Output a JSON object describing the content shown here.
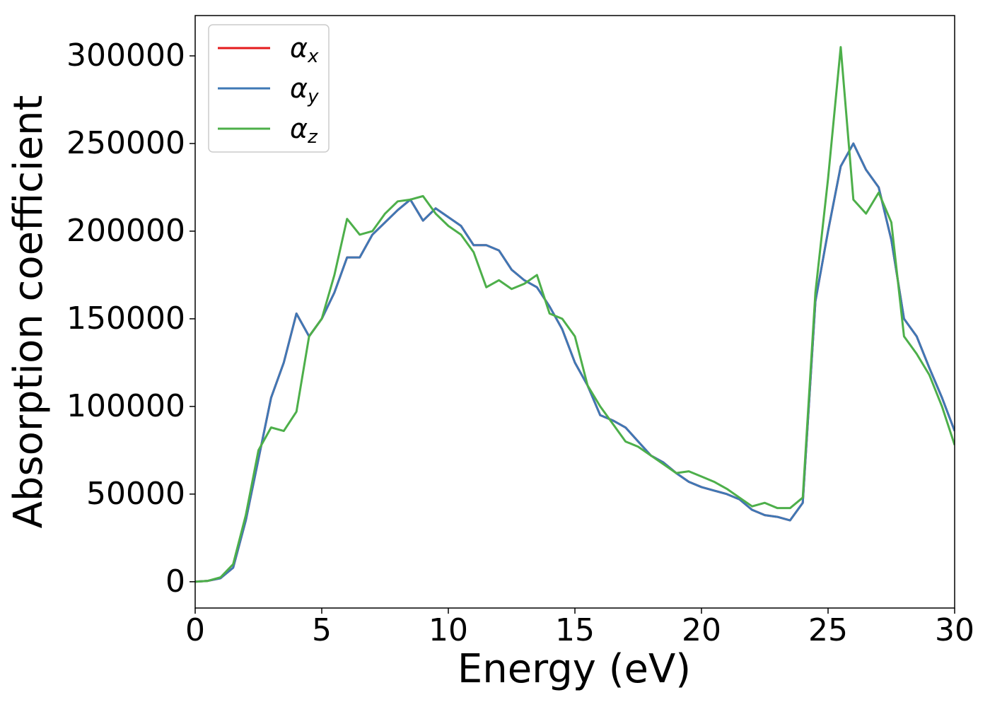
{
  "chart_data": {
    "type": "line",
    "xlabel": "Energy (eV)",
    "ylabel": "Absorption coefficient",
    "x": [
      0,
      0.5,
      1,
      1.5,
      2,
      2.5,
      3,
      3.5,
      4,
      4.5,
      5,
      5.5,
      6,
      6.5,
      7,
      7.5,
      8,
      8.5,
      9,
      9.5,
      10,
      10.5,
      11,
      11.5,
      12,
      12.5,
      13,
      13.5,
      14,
      14.5,
      15,
      15.5,
      16,
      16.5,
      17,
      17.5,
      18,
      18.5,
      19,
      19.5,
      20,
      20.5,
      21,
      21.5,
      22,
      22.5,
      23,
      23.5,
      24,
      24.5,
      25,
      25.5,
      26,
      26.5,
      27,
      27.5,
      28,
      28.5,
      29,
      29.5,
      30
    ],
    "series": [
      {
        "name": "αx",
        "color": "#e41a1c",
        "values": [
          0,
          500,
          2000,
          8000,
          35000,
          70000,
          105000,
          125000,
          153000,
          140000,
          150000,
          165000,
          185000,
          185000,
          198000,
          205000,
          212000,
          218000,
          206000,
          213000,
          208000,
          203000,
          192000,
          192000,
          189000,
          178000,
          172000,
          168000,
          157000,
          144000,
          125000,
          112000,
          95000,
          92000,
          88000,
          80000,
          72000,
          68000,
          62000,
          57000,
          54000,
          52000,
          50000,
          47000,
          41000,
          38000,
          37000,
          35000,
          45000,
          160000,
          200000,
          237000,
          250000,
          235000,
          225000,
          195000,
          150000,
          140000,
          122000,
          105000,
          86000
        ]
      },
      {
        "name": "αy",
        "color": "#3f78b5",
        "values": [
          0,
          500,
          2000,
          8000,
          35000,
          70000,
          105000,
          125000,
          153000,
          140000,
          150000,
          165000,
          185000,
          185000,
          198000,
          205000,
          212000,
          218000,
          206000,
          213000,
          208000,
          203000,
          192000,
          192000,
          189000,
          178000,
          172000,
          168000,
          157000,
          144000,
          125000,
          112000,
          95000,
          92000,
          88000,
          80000,
          72000,
          68000,
          62000,
          57000,
          54000,
          52000,
          50000,
          47000,
          41000,
          38000,
          37000,
          35000,
          45000,
          160000,
          200000,
          237000,
          250000,
          235000,
          225000,
          195000,
          150000,
          140000,
          122000,
          105000,
          86000
        ]
      },
      {
        "name": "αz",
        "color": "#4daf4a",
        "values": [
          0,
          500,
          2500,
          10000,
          38000,
          75000,
          88000,
          86000,
          97000,
          140000,
          150000,
          175000,
          207000,
          198000,
          200000,
          210000,
          217000,
          218000,
          220000,
          210000,
          203000,
          198000,
          188000,
          168000,
          172000,
          167000,
          170000,
          175000,
          153000,
          150000,
          140000,
          112000,
          100000,
          90000,
          80000,
          77000,
          72000,
          67000,
          62000,
          63000,
          60000,
          57000,
          53000,
          48000,
          43000,
          45000,
          42000,
          42000,
          48000,
          165000,
          230000,
          305000,
          218000,
          210000,
          222000,
          205000,
          140000,
          130000,
          118000,
          100000,
          78000
        ]
      }
    ],
    "xlim": [
      0,
      30
    ],
    "xticks": [
      0,
      5,
      10,
      15,
      20,
      25,
      30
    ],
    "ylim": [
      -15000,
      323000
    ],
    "yticks": [
      0,
      50000,
      100000,
      150000,
      200000,
      250000,
      300000
    ],
    "legend": "upper left"
  }
}
